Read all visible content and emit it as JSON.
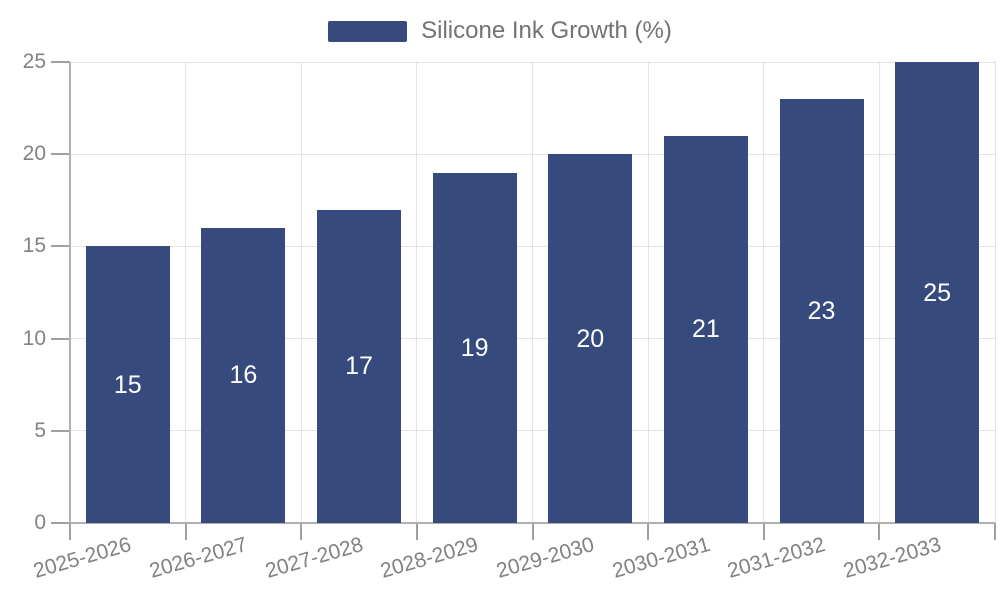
{
  "legend": {
    "label": "Silicone Ink Growth (%)"
  },
  "chart_data": {
    "type": "bar",
    "title": "",
    "categories": [
      "2025-2026",
      "2026-2027",
      "2027-2028",
      "2028-2029",
      "2029-2030",
      "2030-2031",
      "2031-2032",
      "2032-2033"
    ],
    "series": [
      {
        "name": "Silicone Ink Growth (%)",
        "values": [
          15,
          16,
          17,
          19,
          20,
          21,
          23,
          25
        ]
      }
    ],
    "value_labels": [
      "15",
      "16",
      "17",
      "19",
      "20",
      "21",
      "23",
      "25"
    ],
    "ylim": [
      0,
      25
    ],
    "yticks": [
      0,
      5,
      10,
      15,
      20,
      25
    ],
    "grid": "both",
    "legend_position": "top-center",
    "colors": {
      "bar": "#364A7E",
      "grid": "#E3E3E3",
      "axis": "#B0B0B0",
      "tick": "#A0A0A0",
      "tick_label": "#828282",
      "value_label": "#FFFFFF",
      "legend_text": "#737373",
      "background": "#FFFFFF"
    }
  }
}
